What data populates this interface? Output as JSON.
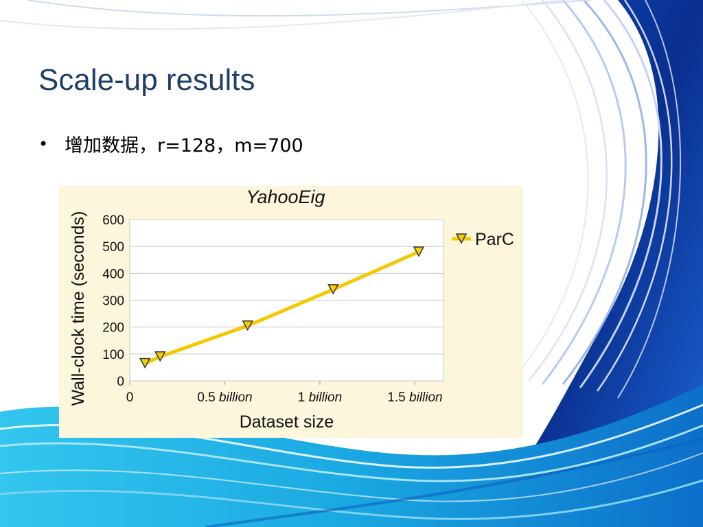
{
  "slide": {
    "title": "Scale-up results",
    "bullet": "增加数据，r=128，m=700"
  },
  "colors": {
    "title": "#1f3f6b",
    "chart_background": "#fbf6dc",
    "series_line": "#f5c800",
    "marker_fill": "#f5d000",
    "grid": "#c8c8c8",
    "wave_dark": "#0a3a9e",
    "wave_light": "#1fb4e8"
  },
  "chart_data": {
    "type": "line",
    "title": "YahooEig",
    "xlabel": "Dataset size",
    "ylabel": "Wall-clock time (seconds)",
    "xlim": [
      0,
      1.65
    ],
    "ylim": [
      0,
      600
    ],
    "x_ticks": [
      {
        "value": 0,
        "num": "0",
        "unit": ""
      },
      {
        "value": 0.5,
        "num": "0.5",
        "unit": "billion"
      },
      {
        "value": 1.0,
        "num": "1",
        "unit": "billion"
      },
      {
        "value": 1.5,
        "num": "1.5",
        "unit": "billion"
      }
    ],
    "y_ticks": [
      0,
      100,
      200,
      300,
      400,
      500,
      600
    ],
    "grid": true,
    "legend_position": "right",
    "series": [
      {
        "name": "ParC",
        "marker": "triangle-down",
        "x": [
          0.08,
          0.16,
          0.62,
          1.07,
          1.52
        ],
        "y": [
          65,
          90,
          205,
          340,
          480
        ]
      }
    ]
  }
}
